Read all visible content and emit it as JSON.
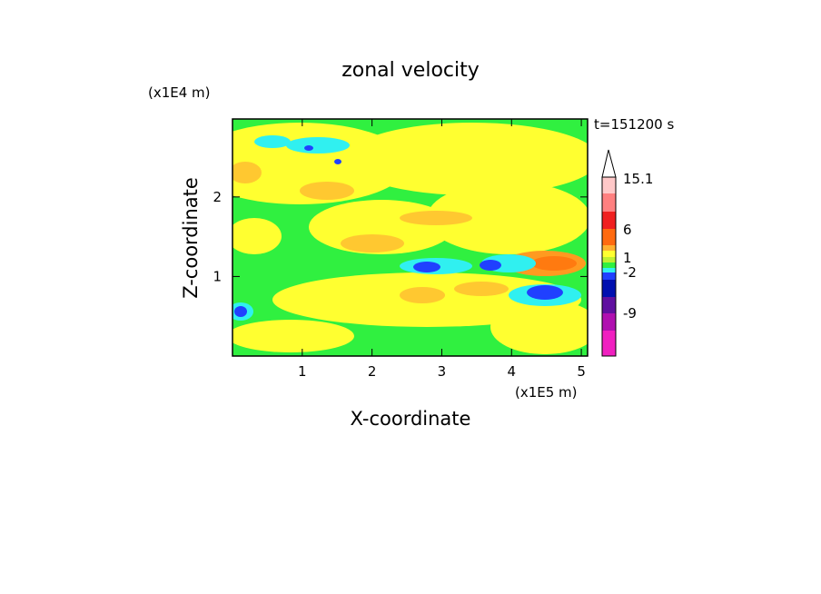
{
  "chart_data": {
    "type": "contour",
    "title": "zonal velocity",
    "x_label": "X-coordinate",
    "y_label": "Z-coordinate",
    "x_unit": "(x1E5 m)",
    "y_unit": "(x1E4 m)",
    "time_label": "t=151200 s",
    "xlim": [
      0,
      5.09
    ],
    "xticks": [
      1,
      2,
      3,
      4,
      5
    ],
    "ylim": [
      0,
      2.98
    ],
    "yticks": [
      1,
      2
    ],
    "colorbar_ticks": [
      15.1,
      6,
      1,
      -2,
      -9
    ]
  }
}
